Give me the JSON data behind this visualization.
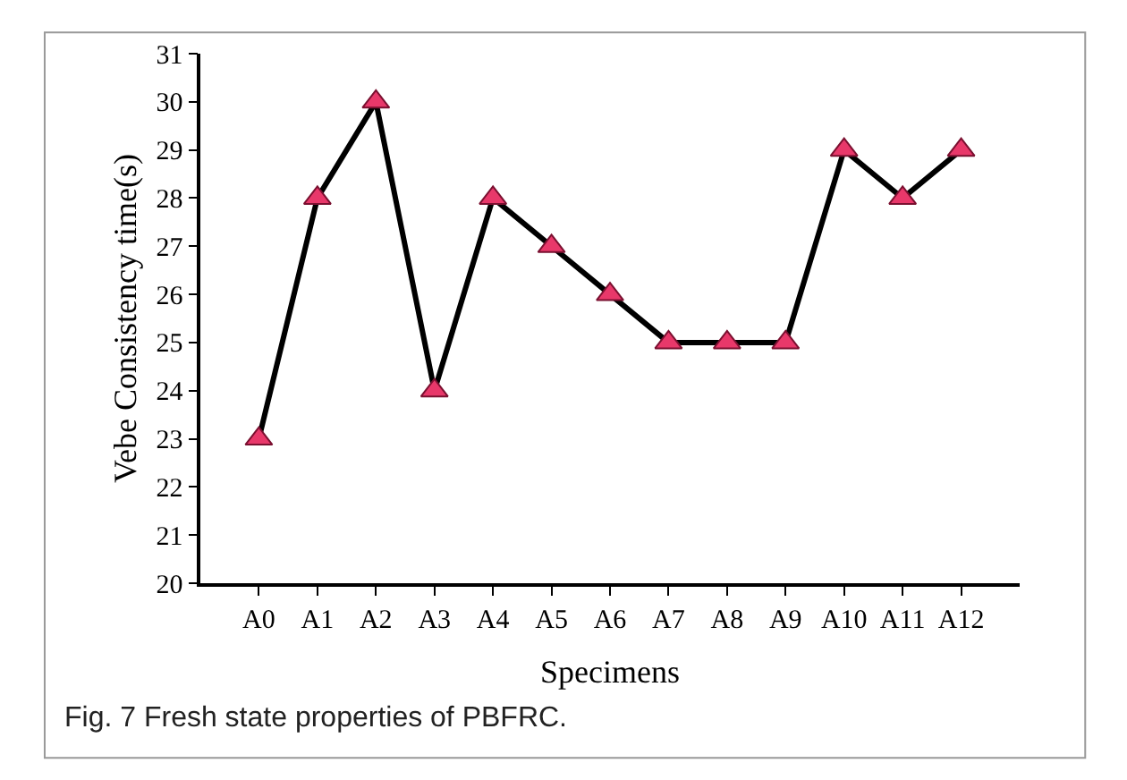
{
  "chart_data": {
    "type": "line",
    "categories": [
      "A0",
      "A1",
      "A2",
      "A3",
      "A4",
      "A5",
      "A6",
      "A7",
      "A8",
      "A9",
      "A10",
      "A11",
      "A12"
    ],
    "series": [
      {
        "color": "#e8386a",
        "values": [
          23,
          28,
          30,
          24,
          28,
          27,
          26,
          25,
          25,
          25,
          29,
          28,
          29
        ]
      }
    ],
    "xlabel": "Specimens",
    "ylabel": "Vebe Consistency time(s)",
    "ylim": [
      20,
      31
    ],
    "yticks": [
      20,
      21,
      22,
      23,
      24,
      25,
      26,
      27,
      28,
      29,
      30,
      31
    ],
    "marker": "triangle",
    "line_style": "solid",
    "legend": false,
    "annotations": [
      "Fig. 7 Fresh state properties of PBFRC."
    ]
  }
}
